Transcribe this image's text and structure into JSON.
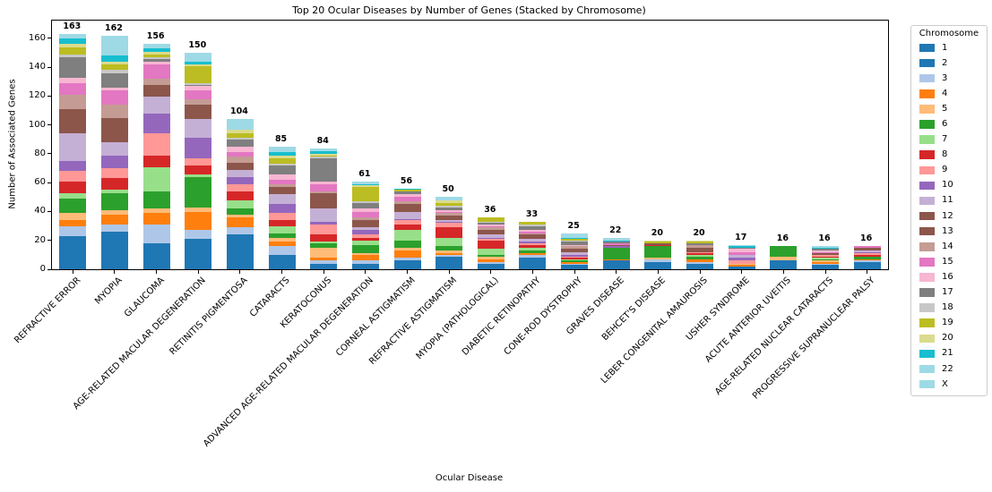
{
  "chart_data": {
    "type": "bar",
    "stacked": true,
    "title": "Top 20 Ocular Diseases by Number of Genes (Stacked by Chromosome)",
    "xlabel": "Ocular Disease",
    "ylabel": "Number of Associated Genes",
    "legend_title": "Chromosome",
    "legend_position": "right",
    "grid": false,
    "ylim": [
      0,
      172.4
    ],
    "yticks": [
      0,
      20,
      40,
      60,
      80,
      100,
      120,
      140,
      160
    ],
    "categories": [
      "REFRACTIVE ERROR",
      "MYOPIA",
      "GLAUCOMA",
      "AGE-RELATED MACULAR DEGENERATION",
      "RETINITIS PIGMENTOSA",
      "CATARACTS",
      "KERATOCONUS",
      "ADVANCED AGE-RELATED MACULAR DEGENERATION",
      "CORNEAL ASTIGMATISM",
      "REFRACTIVE ASTIGMATISM",
      "MYOPIA (PATHOLOGICAL)",
      "DIABETIC RETINOPATHY",
      "CONE-ROD DYSTROPHY",
      "GRAVES DISEASE",
      "BEHCET'S DISEASE",
      "LEBER CONGENITAL AMAUROSIS",
      "USHER SYNDROME",
      "ACUTE ANTERIOR UVEITIS",
      "AGE-RELATED NUCLEAR CATARACTS",
      "PROGRESSIVE SUPRANUCLEAR PALSY"
    ],
    "totals": [
      163,
      162,
      156,
      150,
      104,
      85,
      84,
      61,
      56,
      50,
      36,
      33,
      25,
      22,
      20,
      20,
      17,
      16,
      16,
      16
    ],
    "series": [
      {
        "name": "1",
        "color": "#1f77b4",
        "values": [
          12,
          13,
          9,
          11,
          12,
          5,
          2,
          2,
          3,
          5,
          2,
          4,
          2,
          3,
          3,
          2,
          1,
          3,
          2,
          3
        ]
      },
      {
        "name": "2",
        "color": "#1f77b4",
        "values": [
          11,
          13,
          9,
          10,
          12,
          5,
          2,
          2,
          3,
          4,
          2,
          4,
          1,
          3,
          2,
          2,
          1,
          3,
          1,
          2
        ]
      },
      {
        "name": "3",
        "color": "#aec7e8",
        "values": [
          7,
          5,
          13,
          6,
          5,
          6,
          2,
          2,
          2,
          1,
          1,
          2,
          1,
          0,
          2,
          1,
          0,
          0,
          1,
          1
        ]
      },
      {
        "name": "4",
        "color": "#ff7f0e",
        "values": [
          4,
          7,
          8,
          13,
          7,
          3,
          2,
          4,
          5,
          1,
          2,
          1,
          1,
          1,
          0,
          2,
          1,
          0,
          1,
          1
        ]
      },
      {
        "name": "5",
        "color": "#ffbb78",
        "values": [
          5,
          3,
          3,
          3,
          2,
          3,
          7,
          1,
          2,
          2,
          2,
          0,
          0,
          0,
          1,
          0,
          1,
          3,
          1,
          0
        ]
      },
      {
        "name": "6",
        "color": "#2ca02c",
        "values": [
          10,
          12,
          12,
          21,
          4,
          3,
          3,
          6,
          5,
          3,
          1,
          2,
          1,
          8,
          8,
          2,
          0,
          7,
          1,
          2
        ]
      },
      {
        "name": "7",
        "color": "#98df8a",
        "values": [
          4,
          2,
          17,
          2,
          6,
          5,
          1,
          3,
          7,
          6,
          4,
          2,
          1,
          0,
          0,
          1,
          0,
          0,
          1,
          0
        ]
      },
      {
        "name": "8",
        "color": "#d62728",
        "values": [
          8,
          8,
          8,
          6,
          6,
          4,
          5,
          2,
          4,
          7,
          6,
          2,
          1,
          0,
          1,
          1,
          0,
          0,
          1,
          1
        ]
      },
      {
        "name": "9",
        "color": "#ff9896",
        "values": [
          7,
          7,
          15,
          5,
          5,
          5,
          7,
          2,
          3,
          3,
          1,
          1,
          1,
          0,
          0,
          1,
          2,
          0,
          1,
          1
        ]
      },
      {
        "name": "10",
        "color": "#9467bd",
        "values": [
          7,
          9,
          14,
          14,
          5,
          6,
          2,
          3,
          1,
          1,
          1,
          1,
          1,
          1,
          0,
          0,
          2,
          0,
          0,
          1
        ]
      },
      {
        "name": "11",
        "color": "#c5b0d5",
        "values": [
          19,
          9,
          12,
          13,
          5,
          7,
          9,
          2,
          5,
          1,
          2,
          2,
          2,
          0,
          0,
          0,
          2,
          0,
          0,
          1
        ]
      },
      {
        "name": "12",
        "color": "#8c564b",
        "values": [
          9,
          9,
          4,
          5,
          3,
          3,
          6,
          3,
          3,
          2,
          2,
          2,
          1,
          1,
          1,
          2,
          0,
          0,
          1,
          1
        ]
      },
      {
        "name": "13",
        "color": "#8c564b",
        "values": [
          8,
          8,
          4,
          5,
          2,
          2,
          5,
          2,
          2,
          1,
          1,
          1,
          1,
          0,
          0,
          1,
          0,
          0,
          0,
          1
        ]
      },
      {
        "name": "14",
        "color": "#c49c94",
        "values": [
          10,
          9,
          4,
          4,
          4,
          2,
          1,
          2,
          2,
          2,
          2,
          1,
          2,
          0,
          0,
          2,
          0,
          0,
          0,
          0
        ]
      },
      {
        "name": "15",
        "color": "#e377c2",
        "values": [
          8,
          10,
          10,
          6,
          3,
          3,
          5,
          4,
          3,
          1,
          1,
          1,
          0,
          1,
          0,
          0,
          2,
          0,
          1,
          1
        ]
      },
      {
        "name": "16",
        "color": "#f7b6d2",
        "values": [
          4,
          2,
          2,
          3,
          4,
          4,
          2,
          2,
          2,
          1,
          1,
          1,
          1,
          0,
          0,
          0,
          2,
          0,
          1,
          0
        ]
      },
      {
        "name": "17",
        "color": "#7f7f7f",
        "values": [
          14,
          10,
          2,
          1,
          5,
          6,
          16,
          4,
          2,
          2,
          1,
          3,
          2,
          1,
          0,
          1,
          1,
          0,
          1,
          0
        ]
      },
      {
        "name": "18",
        "color": "#c7c7c7",
        "values": [
          2,
          2,
          1,
          1,
          1,
          1,
          1,
          1,
          0,
          1,
          1,
          1,
          1,
          0,
          0,
          0,
          0,
          0,
          0,
          0
        ]
      },
      {
        "name": "19",
        "color": "#bcbd22",
        "values": [
          5,
          4,
          2,
          12,
          3,
          4,
          1,
          10,
          1,
          2,
          3,
          2,
          1,
          0,
          1,
          1,
          0,
          0,
          0,
          0
        ]
      },
      {
        "name": "20",
        "color": "#dbdb8d",
        "values": [
          2,
          2,
          2,
          1,
          3,
          2,
          1,
          1,
          0,
          2,
          0,
          0,
          0,
          0,
          1,
          1,
          0,
          0,
          0,
          0
        ]
      },
      {
        "name": "21",
        "color": "#17becf",
        "values": [
          4,
          4,
          2,
          2,
          0,
          2,
          2,
          1,
          1,
          0,
          0,
          0,
          1,
          1,
          0,
          0,
          1,
          0,
          1,
          0
        ]
      },
      {
        "name": "22",
        "color": "#9edae5",
        "values": [
          2,
          7,
          2,
          3,
          3,
          2,
          1,
          1,
          0,
          1,
          0,
          0,
          2,
          1,
          0,
          0,
          1,
          0,
          1,
          0
        ]
      },
      {
        "name": "X",
        "color": "#9edae5",
        "values": [
          1,
          7,
          1,
          3,
          4,
          2,
          1,
          1,
          0,
          1,
          0,
          0,
          1,
          1,
          0,
          0,
          0,
          0,
          0,
          0
        ]
      }
    ]
  }
}
